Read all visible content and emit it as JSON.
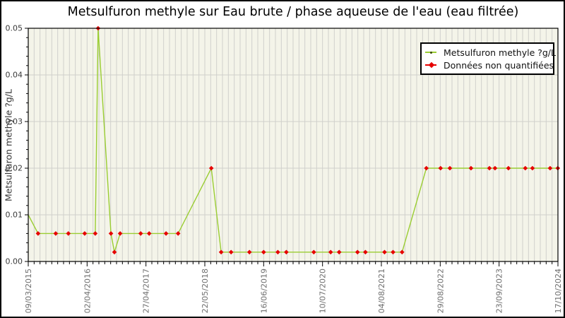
{
  "chart_data": {
    "type": "line",
    "title": "Metsulfuron methyle sur Eau brute / phase aqueuse de l'eau (eau filtrée)",
    "ylabel": "Metsulfuron methyle ?g/L",
    "xlabel": "",
    "ylim": [
      0,
      0.05
    ],
    "y_tick_labels": [
      "0.00",
      "0.01",
      "0.02",
      "0.03",
      "0.04",
      "0.05"
    ],
    "y_major_step": 0.01,
    "y_minor_step": 0.002,
    "x_tick_labels": [
      "09/03/2015",
      "02/04/2016",
      "27/04/2017",
      "22/05/2018",
      "16/06/2019",
      "10/07/2020",
      "04/08/2021",
      "29/08/2022",
      "23/09/2023",
      "17/10/2024"
    ],
    "x_minor_per_major": 10,
    "grid": true,
    "legend": {
      "position": "top-right",
      "entries": [
        {
          "label": "Metsulfuron methyle ?g/L",
          "color": "#9acd32",
          "marker": "dot"
        },
        {
          "label": "Données non quantifiées",
          "color": "#e60000",
          "marker": "diamond"
        }
      ]
    },
    "colors": {
      "line": "#9acd32",
      "marker": "#e60000",
      "plot_bg": "#f4f4e9",
      "grid": "#d0d0cc",
      "axis": "#000000",
      "y_tick_label": "#3a3a3a",
      "x_tick_label": "#6e6e6e"
    },
    "series": [
      {
        "name": "Metsulfuron methyle ?g/L",
        "color": "#9acd32",
        "marker_color": "#e60000",
        "points": [
          {
            "date": "09/03/2015",
            "value": 0.01,
            "marker": false
          },
          {
            "date": "13/05/2015",
            "value": 0.006
          },
          {
            "date": "07/09/2015",
            "value": 0.006
          },
          {
            "date": "30/11/2015",
            "value": 0.006
          },
          {
            "date": "17/03/2016",
            "value": 0.006
          },
          {
            "date": "26/05/2016",
            "value": 0.006
          },
          {
            "date": "14/06/2016",
            "value": 0.05
          },
          {
            "date": "07/09/2016",
            "value": 0.006
          },
          {
            "date": "30/09/2016",
            "value": 0.002
          },
          {
            "date": "07/11/2016",
            "value": 0.006
          },
          {
            "date": "23/03/2017",
            "value": 0.006
          },
          {
            "date": "18/05/2017",
            "value": 0.006
          },
          {
            "date": "07/09/2017",
            "value": 0.006
          },
          {
            "date": "26/11/2017",
            "value": 0.006
          },
          {
            "date": "04/07/2018",
            "value": 0.02
          },
          {
            "date": "07/09/2018",
            "value": 0.002
          },
          {
            "date": "12/11/2018",
            "value": 0.002
          },
          {
            "date": "14/03/2019",
            "value": 0.002
          },
          {
            "date": "16/06/2019",
            "value": 0.002
          },
          {
            "date": "18/09/2019",
            "value": 0.002
          },
          {
            "date": "13/11/2019",
            "value": 0.002
          },
          {
            "date": "13/05/2020",
            "value": 0.002
          },
          {
            "date": "02/09/2020",
            "value": 0.002
          },
          {
            "date": "28/10/2020",
            "value": 0.002
          },
          {
            "date": "27/02/2021",
            "value": 0.002
          },
          {
            "date": "20/04/2021",
            "value": 0.002
          },
          {
            "date": "25/08/2021",
            "value": 0.002
          },
          {
            "date": "20/10/2021",
            "value": 0.002
          },
          {
            "date": "19/12/2021",
            "value": 0.002
          },
          {
            "date": "29/05/2022",
            "value": 0.02
          },
          {
            "date": "31/08/2022",
            "value": 0.02
          },
          {
            "date": "01/11/2022",
            "value": 0.02
          },
          {
            "date": "21/03/2023",
            "value": 0.02
          },
          {
            "date": "21/07/2023",
            "value": 0.02
          },
          {
            "date": "27/08/2023",
            "value": 0.02
          },
          {
            "date": "24/11/2023",
            "value": 0.02
          },
          {
            "date": "15/03/2024",
            "value": 0.02
          },
          {
            "date": "01/05/2024",
            "value": 0.02
          },
          {
            "date": "26/08/2024",
            "value": 0.02
          },
          {
            "date": "16/10/2024",
            "value": 0.02
          }
        ]
      }
    ]
  }
}
